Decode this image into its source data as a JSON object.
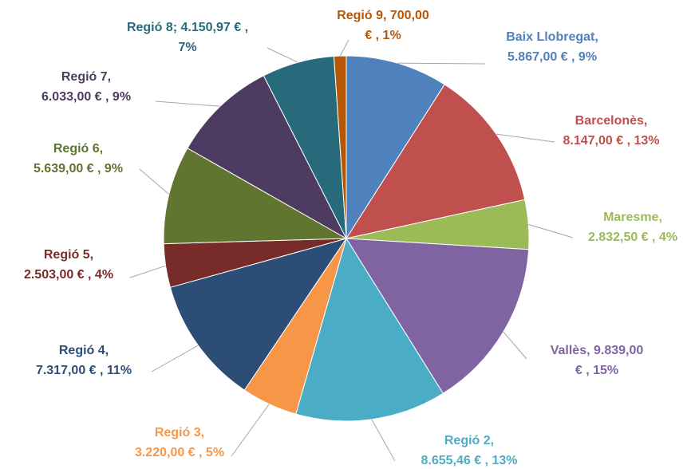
{
  "chart_data": {
    "type": "pie",
    "values": [
      5867,
      8147,
      2832.5,
      9839,
      8655.46,
      3220,
      7317,
      2503,
      5639,
      6033,
      4150.97,
      700
    ],
    "value_labels": [
      [
        "Baix Llobregat,",
        "5.867,00 € , 9%"
      ],
      [
        "Barcelonès,",
        "8.147,00 € , 13%"
      ],
      [
        "Maresme,",
        "2.832,50 € , 4%"
      ],
      [
        "Vallès,  9.839,00",
        "€ , 15%"
      ],
      [
        "Regió 2,",
        "8.655,46 € , 13%"
      ],
      [
        "Regió 3,",
        "3.220,00 € , 5%"
      ],
      [
        "Regió 4,",
        "7.317,00 € , 11%"
      ],
      [
        "Regió 5,",
        "2.503,00 € , 4%"
      ],
      [
        "Regió 6,",
        "5.639,00 € , 9%"
      ],
      [
        "Regió 7,",
        "6.033,00 € , 9%"
      ],
      [
        "Regió 8; 4.150,97 € ,",
        "7%"
      ],
      [
        "Regió 9,  700,00",
        "€ , 1%"
      ]
    ],
    "colors": [
      "#4f81bd",
      "#c0504d",
      "#9bbb59",
      "#8064a2",
      "#4bacc6",
      "#f79646",
      "#2c4d75",
      "#772c2a",
      "#5f7530",
      "#4d3b62",
      "#276a7c",
      "#b65708"
    ]
  }
}
